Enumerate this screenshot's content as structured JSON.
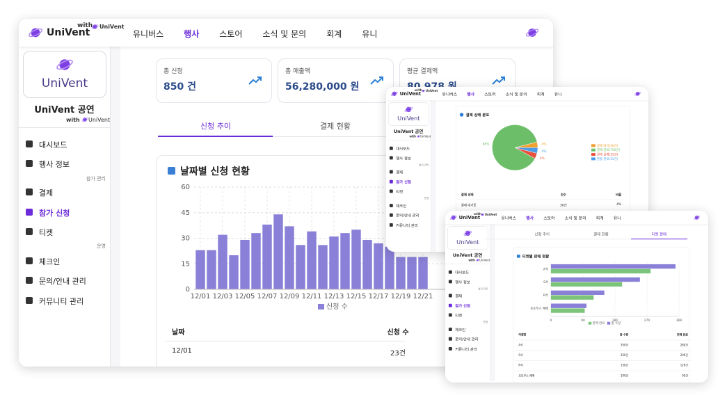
{
  "nav": {
    "brand": "UniVent",
    "with": "with",
    "partner": "UniVent",
    "menu": [
      "유니버스",
      "행사",
      "스토어",
      "소식 및 문의",
      "회계",
      "유니"
    ],
    "active": 1
  },
  "sidebar": {
    "logo": "UniVent",
    "event": "UniVent 공연",
    "with": "with",
    "partner": "UniVent",
    "groups": [
      {
        "items": [
          "대시보드",
          "행사 정보"
        ]
      },
      {
        "title": "참가 관리",
        "items": [
          "결제",
          "참가 신청",
          "티켓"
        ]
      },
      {
        "title": "운영",
        "items": [
          "체크인",
          "문의/안내 관리",
          "커뮤니티 관리"
        ]
      }
    ],
    "active_group": 1,
    "active_item": 1
  },
  "stats": [
    {
      "label": "총 신청",
      "value": "850 건"
    },
    {
      "label": "총 매출액",
      "value": "56,280,000 원"
    },
    {
      "label": "평균 결제액",
      "value": "80,978 원"
    }
  ],
  "tabs": [
    "신청 추이",
    "결제 현황",
    "티켓 판매"
  ],
  "chart_data": [
    {
      "type": "bar",
      "title": "날짜별 신청 현황",
      "categories": [
        "12/01",
        null,
        "12/03",
        null,
        "12/05",
        null,
        "12/07",
        null,
        "12/09",
        null,
        "12/11",
        null,
        "12/13",
        null,
        "12/15",
        null,
        "12/17",
        null,
        "12/19",
        null,
        "12/21"
      ],
      "series": [
        {
          "name": "신청 수",
          "color": "#8a80d8",
          "values": [
            23,
            23,
            32,
            20,
            29,
            33,
            38,
            44,
            37,
            26,
            34,
            26,
            31,
            33,
            35,
            29,
            27,
            25,
            19,
            19,
            19
          ]
        }
      ],
      "ylim": [
        0,
        60
      ],
      "yticks": [
        0,
        15,
        30,
        45,
        60
      ],
      "grid": true
    },
    {
      "type": "pie",
      "title": "결제 상태 분포",
      "categories": [
        "결제 대기(30건)",
        "결제 완료(750건)",
        "결제 실패(35건)",
        "환불 완료(35건)"
      ],
      "values": [
        4,
        88,
        4,
        4
      ],
      "value_labels": [
        "4%",
        "88%",
        "4%",
        "4%"
      ],
      "colors": [
        "#f0a030",
        "#6cbf68",
        "#e8533f",
        "#4a9be8"
      ]
    },
    {
      "type": "hbar",
      "title": "티켓별 판매 현황",
      "categories": [
        "A석",
        "S석",
        "R석",
        "포토부스 예매"
      ],
      "series": [
        {
          "name": "판매 완료",
          "color": "#7cc47a",
          "values": [
            280,
            200,
            120,
            95
          ]
        },
        {
          "name": "총 수량",
          "color": "#8a80d8",
          "values": [
            350,
            250,
            150,
            100
          ]
        }
      ],
      "xlim": [
        0,
        360
      ],
      "xticks": [
        0,
        90,
        180,
        270,
        360
      ],
      "grid": true
    }
  ],
  "tables": [
    {
      "columns": [
        "날짜",
        "신청 수"
      ],
      "rows": [
        [
          "12/01",
          "23건"
        ]
      ]
    },
    {
      "columns": [
        "결제 상태",
        "건수",
        "비율"
      ],
      "rows": [
        [
          "결제 대기중",
          "30건",
          "4%"
        ]
      ]
    },
    {
      "columns": [
        "티켓명",
        "총 수량",
        "판매 완료"
      ],
      "rows": [
        [
          "A석",
          "350건",
          "280건"
        ],
        [
          "S석",
          "250건",
          "200건"
        ],
        [
          "R석",
          "150건",
          "120건"
        ],
        [
          "포토부스 예매",
          "100건",
          "95건"
        ]
      ]
    }
  ]
}
